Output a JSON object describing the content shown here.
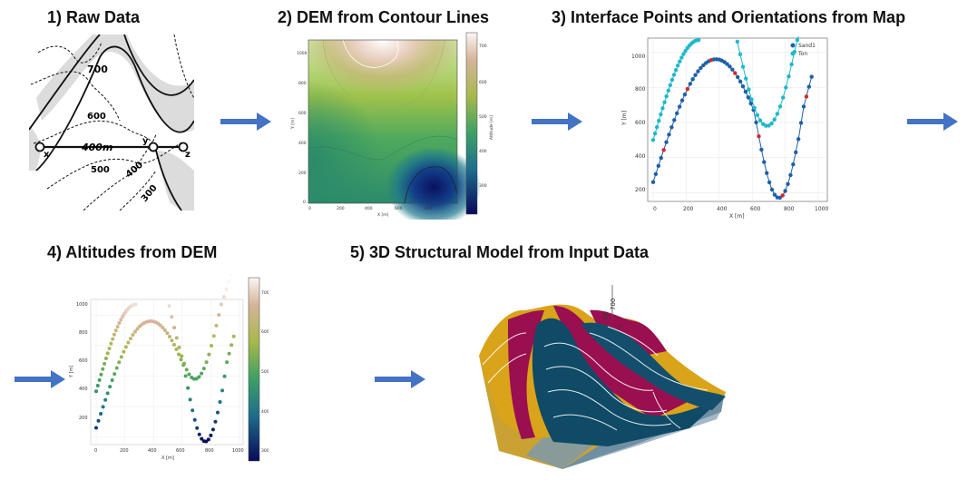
{
  "titles": {
    "t1": "1)   Raw Data",
    "t2": "2) DEM from Contour Lines",
    "t3": "3) Interface Points and Orientations from Map",
    "t4": "4) Altitudes from DEM",
    "t5": "5) 3D Structural Model from Input Data"
  },
  "raw_map": {
    "contour_labels": [
      "700",
      "600",
      "500",
      "400",
      "300"
    ],
    "section_label": "400m",
    "point_labels": [
      "x",
      "y",
      "z"
    ]
  },
  "dem": {
    "xlabel": "X [m]",
    "ylabel": "Y [m]",
    "x_ticks": [
      "0",
      "200",
      "400",
      "600",
      "800"
    ],
    "y_ticks": [
      "0",
      "200",
      "400",
      "600",
      "800",
      "1000"
    ],
    "colorbar_label": "Altitude [m]",
    "colorbar_ticks": [
      "300",
      "400",
      "500",
      "600",
      "700"
    ]
  },
  "interfaces": {
    "xlabel": "X [m]",
    "ylabel": "Y [m]",
    "x_ticks": [
      "0",
      "200",
      "400",
      "600",
      "800",
      "1000"
    ],
    "y_ticks": [
      "200",
      "400",
      "600",
      "800",
      "1000"
    ],
    "legend": [
      "Sand1",
      "Ton"
    ],
    "colors": {
      "Sand1": "#1f5fa8",
      "Ton": "#1fb8cc",
      "orientation": "#d62728"
    }
  },
  "altitudes": {
    "xlabel": "X [m]",
    "ylabel": "Y [m]",
    "x_ticks": [
      "0",
      "200",
      "400",
      "600",
      "800",
      "1000"
    ],
    "y_ticks": [
      "200",
      "400",
      "600",
      "800",
      "1000"
    ],
    "colorbar_ticks": [
      "300",
      "400",
      "500",
      "600",
      "700"
    ]
  },
  "model3d": {
    "axis_ticks": [
      "700",
      "00"
    ],
    "axis_label": "Z"
  },
  "arrow_color": "#4472c4"
}
